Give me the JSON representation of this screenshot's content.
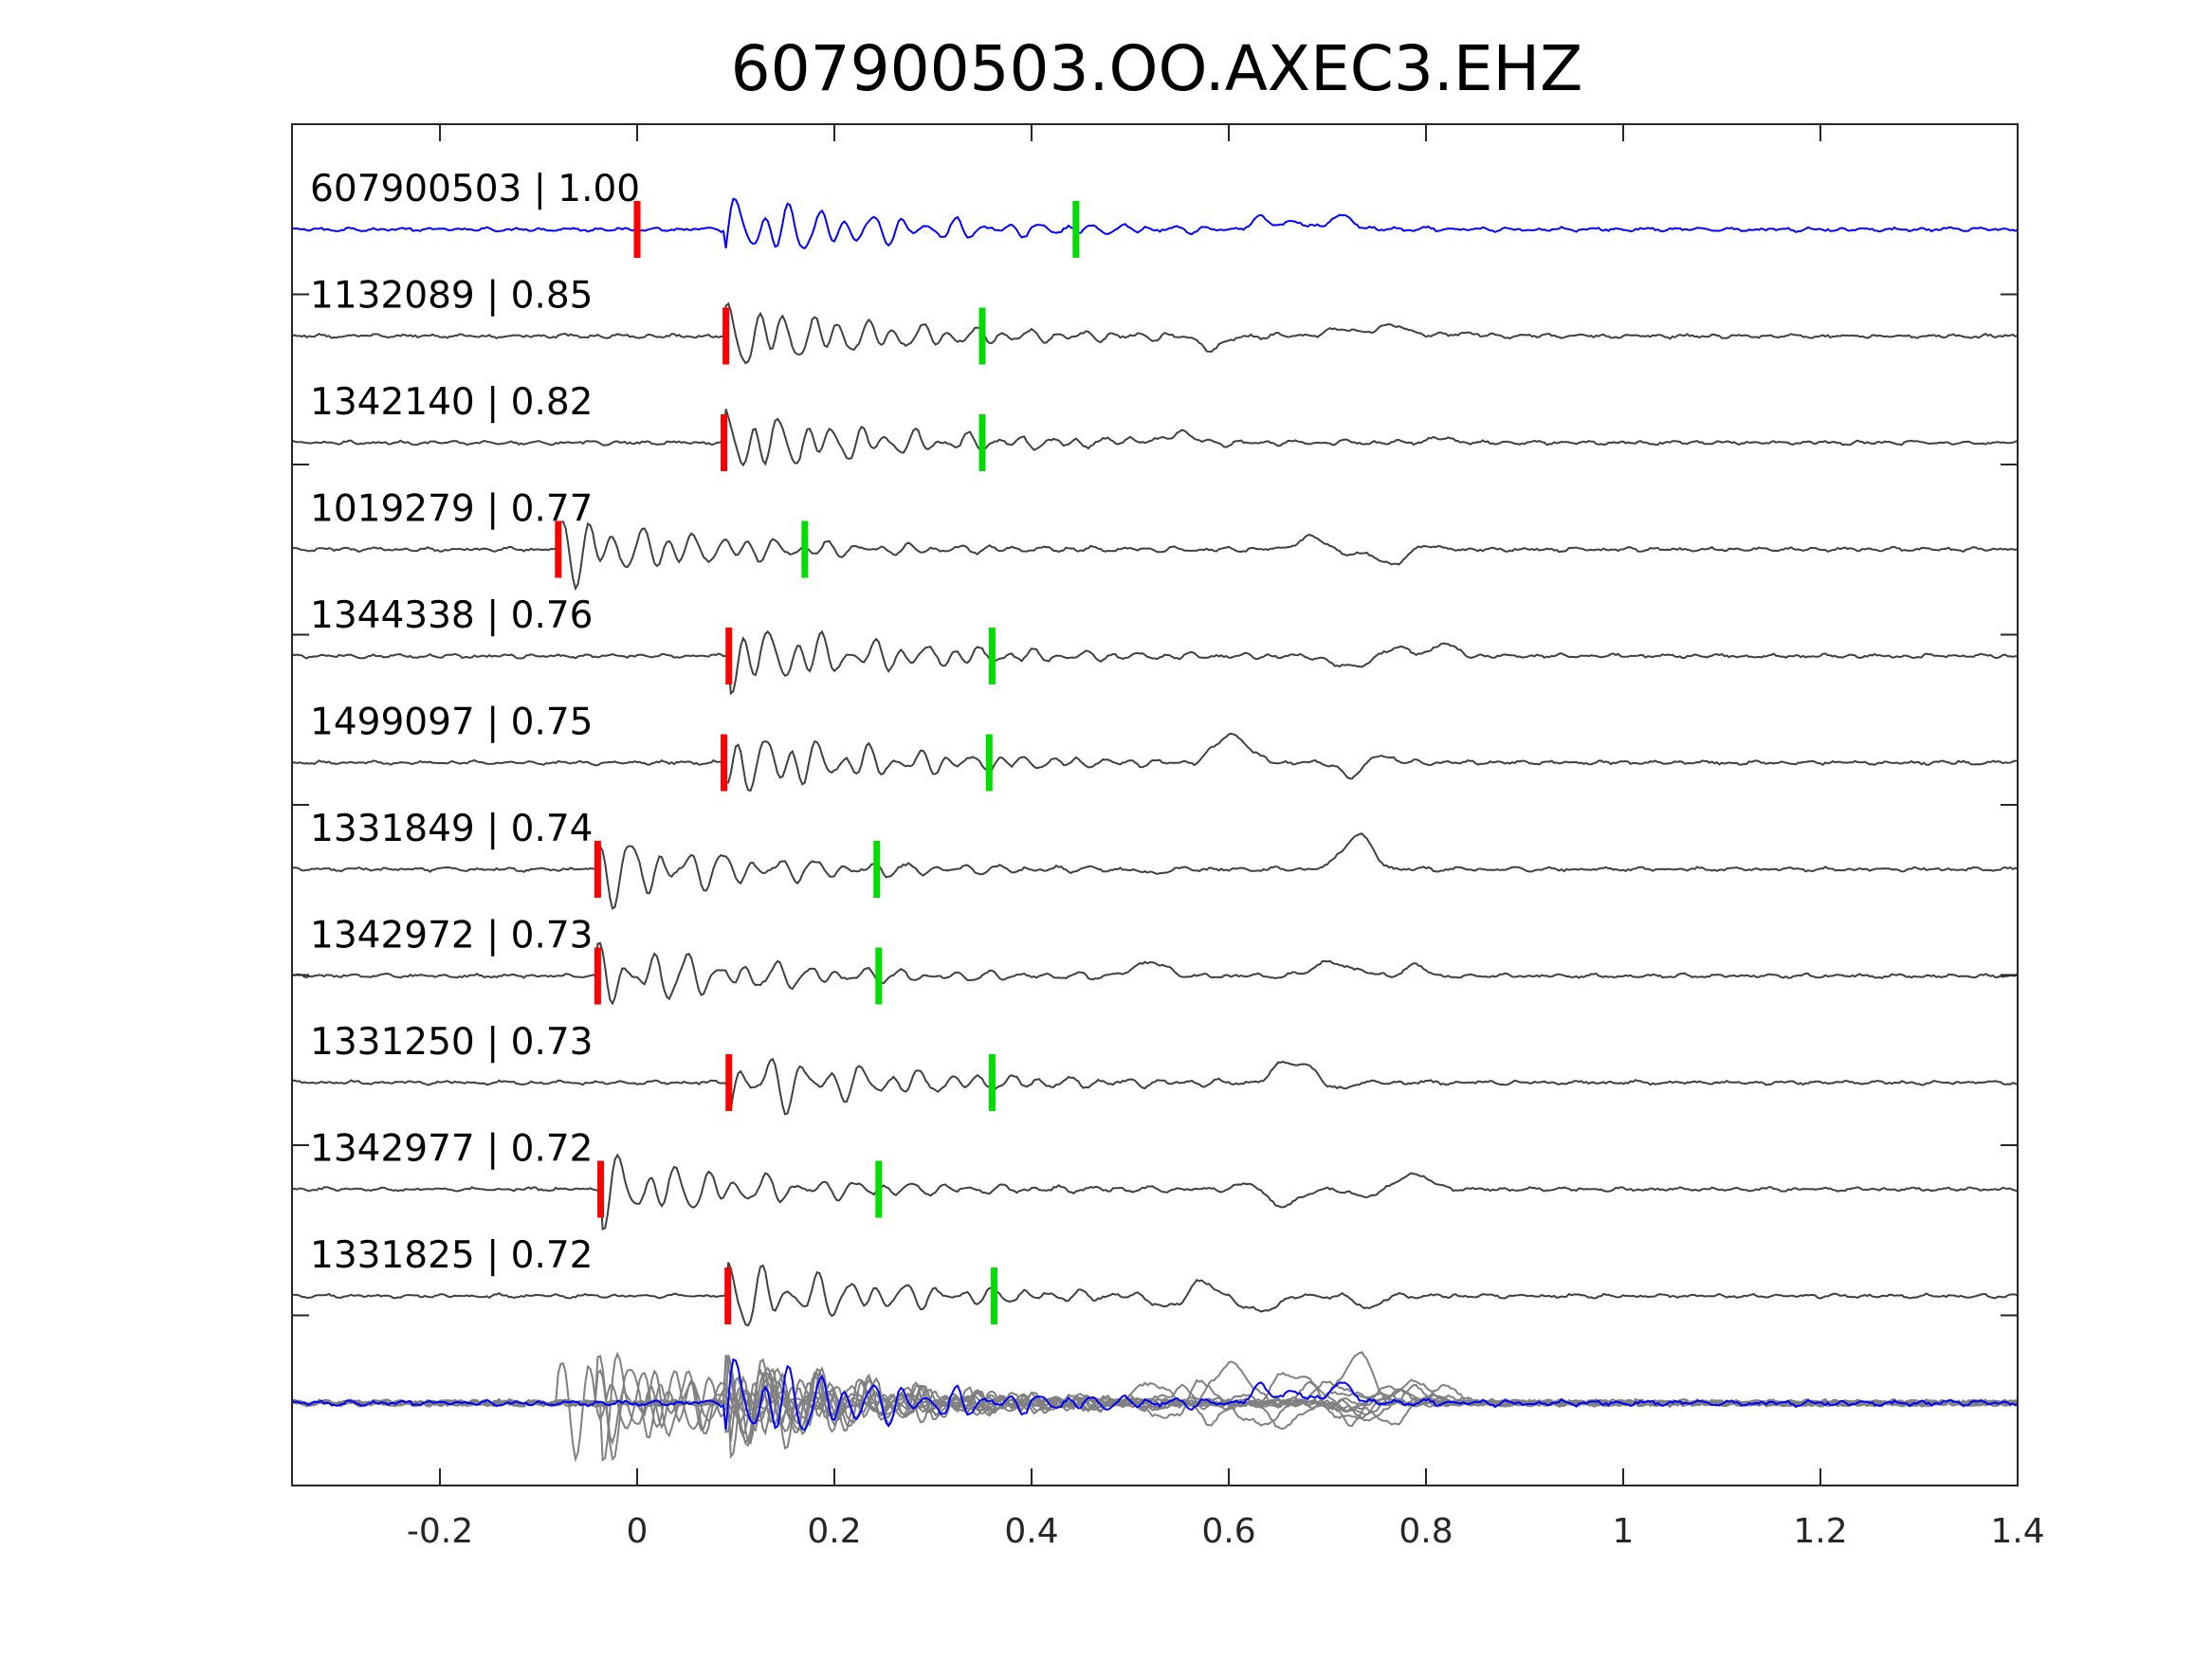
{
  "chart_data": {
    "type": "line",
    "title": "607900503.OO.AXEC3.EHZ",
    "xlabel": "",
    "ylabel": "",
    "xlim": [
      -0.35,
      1.4
    ],
    "x_ticks": [
      -0.2,
      0,
      0.2,
      0.4,
      0.6,
      0.8,
      1,
      1.2,
      1.4
    ],
    "x_tick_labels": [
      "-0.2",
      "0",
      "0.2",
      "0.4",
      "0.6",
      "0.8",
      "1",
      "1.2",
      "1.4"
    ],
    "grid": false,
    "colors": {
      "template": "#0000ff",
      "neighbor": "#404040",
      "stack": "#808080",
      "p_pick": "#ff0000",
      "s_pick": "#00dd00"
    },
    "series": [
      {
        "label": "607900503 | 1.00",
        "p_pick": 0.0,
        "s_pick": 0.445,
        "color": "template"
      },
      {
        "label": "1132089 | 0.85",
        "p_pick": 0.09,
        "s_pick": 0.35,
        "color": "neighbor"
      },
      {
        "label": "1342140 | 0.82",
        "p_pick": 0.088,
        "s_pick": 0.35,
        "color": "neighbor"
      },
      {
        "label": "1019279 | 0.77",
        "p_pick": -0.08,
        "s_pick": 0.17,
        "color": "neighbor"
      },
      {
        "label": "1344338 | 0.76",
        "p_pick": 0.093,
        "s_pick": 0.36,
        "color": "neighbor"
      },
      {
        "label": "1499097 | 0.75",
        "p_pick": 0.088,
        "s_pick": 0.357,
        "color": "neighbor"
      },
      {
        "label": "1331849 | 0.74",
        "p_pick": -0.04,
        "s_pick": 0.243,
        "color": "neighbor"
      },
      {
        "label": "1342972 | 0.73",
        "p_pick": -0.04,
        "s_pick": 0.245,
        "color": "neighbor"
      },
      {
        "label": "1331250 | 0.73",
        "p_pick": 0.093,
        "s_pick": 0.36,
        "color": "neighbor"
      },
      {
        "label": "1342977 | 0.72",
        "p_pick": -0.037,
        "s_pick": 0.245,
        "color": "neighbor"
      },
      {
        "label": "1331825 | 0.72",
        "p_pick": 0.092,
        "s_pick": 0.362,
        "color": "neighbor"
      }
    ]
  }
}
